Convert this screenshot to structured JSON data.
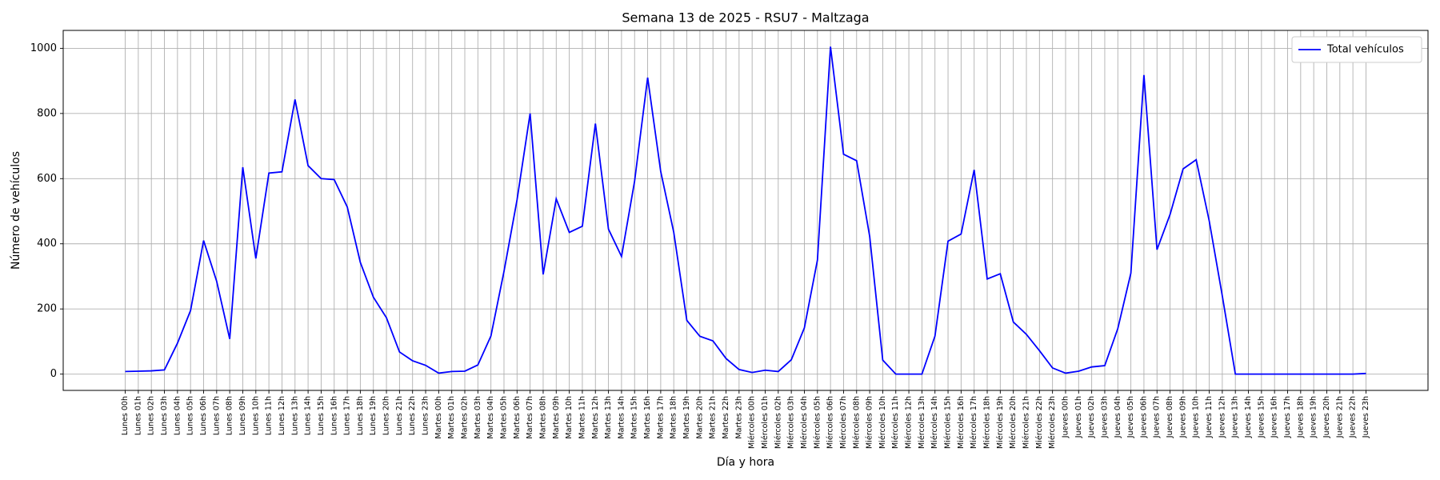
{
  "chart_data": {
    "type": "line",
    "title": "Semana 13 de 2025 - RSU7 - Maltzaga",
    "x_label": "Día y hora",
    "y_label": "Número de vehículos",
    "categories": [
      "Lunes 00h",
      "Lunes 01h",
      "Lunes 02h",
      "Lunes 03h",
      "Lunes 04h",
      "Lunes 05h",
      "Lunes 06h",
      "Lunes 07h",
      "Lunes 08h",
      "Lunes 09h",
      "Lunes 10h",
      "Lunes 11h",
      "Lunes 12h",
      "Lunes 13h",
      "Lunes 14h",
      "Lunes 15h",
      "Lunes 16h",
      "Lunes 17h",
      "Lunes 18h",
      "Lunes 19h",
      "Lunes 20h",
      "Lunes 21h",
      "Lunes 22h",
      "Lunes 23h",
      "Martes 00h",
      "Martes 01h",
      "Martes 02h",
      "Martes 03h",
      "Martes 04h",
      "Martes 05h",
      "Martes 06h",
      "Martes 07h",
      "Martes 08h",
      "Martes 09h",
      "Martes 10h",
      "Martes 11h",
      "Martes 12h",
      "Martes 13h",
      "Martes 14h",
      "Martes 15h",
      "Martes 16h",
      "Martes 17h",
      "Martes 18h",
      "Martes 19h",
      "Martes 20h",
      "Martes 21h",
      "Martes 22h",
      "Martes 23h",
      "Miércoles 00h",
      "Miércoles 01h",
      "Miércoles 02h",
      "Miércoles 03h",
      "Miércoles 04h",
      "Miércoles 05h",
      "Miércoles 06h",
      "Miércoles 07h",
      "Miércoles 08h",
      "Miércoles 09h",
      "Miércoles 10h",
      "Miércoles 11h",
      "Miércoles 12h",
      "Miércoles 13h",
      "Miércoles 14h",
      "Miércoles 15h",
      "Miércoles 16h",
      "Miércoles 17h",
      "Miércoles 18h",
      "Miércoles 19h",
      "Miércoles 20h",
      "Miércoles 21h",
      "Miércoles 22h",
      "Miércoles 23h",
      "Jueves 00h",
      "Jueves 01h",
      "Jueves 02h",
      "Jueves 03h",
      "Jueves 04h",
      "Jueves 05h",
      "Jueves 06h",
      "Jueves 07h",
      "Jueves 08h",
      "Jueves 09h",
      "Jueves 10h",
      "Jueves 11h",
      "Jueves 12h",
      "Jueves 13h",
      "Jueves 14h",
      "Jueves 15h",
      "Jueves 16h",
      "Jueves 17h",
      "Jueves 18h",
      "Jueves 19h",
      "Jueves 20h",
      "Jueves 21h",
      "Jueves 22h",
      "Jueves 23h"
    ],
    "series": [
      {
        "name": "Total vehículos",
        "color": "#0000ff",
        "values": [
          8,
          9,
          10,
          13,
          95,
          195,
          410,
          285,
          108,
          635,
          355,
          617,
          621,
          843,
          640,
          600,
          597,
          513,
          343,
          236,
          173,
          68,
          41,
          27,
          3,
          8,
          9,
          28,
          117,
          315,
          535,
          800,
          306,
          538,
          435,
          454,
          769,
          445,
          361,
          592,
          910,
          622,
          435,
          165,
          116,
          102,
          48,
          14,
          5,
          12,
          8,
          44,
          142,
          350,
          1005,
          675,
          655,
          423,
          43,
          0,
          0,
          0,
          117,
          408,
          430,
          627,
          292,
          308,
          160,
          122,
          72,
          19,
          3,
          9,
          22,
          26,
          140,
          310,
          918,
          382,
          490,
          630,
          658,
          470,
          240,
          0,
          0,
          0,
          0,
          0,
          0,
          0,
          0,
          0,
          0,
          2
        ]
      }
    ],
    "ylim": [
      -50,
      1055
    ],
    "yticks": [
      0,
      200,
      400,
      600,
      800,
      1000
    ],
    "grid": true,
    "legend": "upper right"
  }
}
